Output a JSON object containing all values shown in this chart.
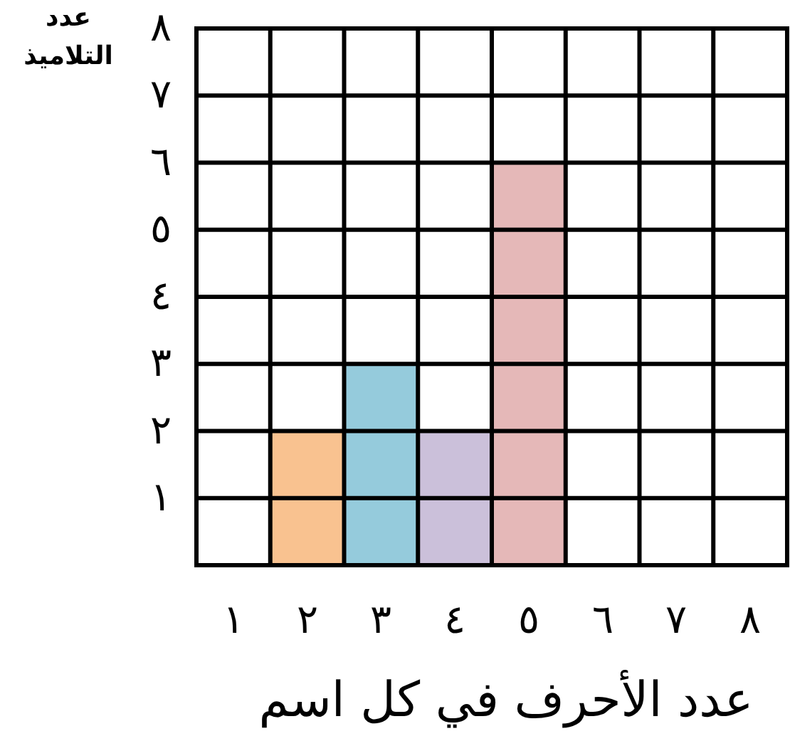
{
  "chart_data": {
    "type": "bar",
    "xlabel": "عدد الأحرف في كل اسم",
    "ylabel": "عدد التلاميذ",
    "categories": [
      "١",
      "٢",
      "٣",
      "٤",
      "٥",
      "٦",
      "٧",
      "٨"
    ],
    "values": [
      0,
      2,
      3,
      2,
      6,
      0,
      0,
      0
    ],
    "colors": [
      "#f9c290",
      "#f9c290",
      "#95cbdc",
      "#cbc0da",
      "#e5b8b8",
      "#e5b8b8",
      "#e5b8b8",
      "#e5b8b8"
    ],
    "ylim": [
      0,
      8
    ],
    "yticks": [
      {
        "value": 1,
        "label": "١"
      },
      {
        "value": 2,
        "label": "٢"
      },
      {
        "value": 3,
        "label": "٣"
      },
      {
        "value": 4,
        "label": "٤"
      },
      {
        "value": 5,
        "label": "٥"
      },
      {
        "value": 6,
        "label": "٦"
      },
      {
        "value": 7,
        "label": "٧"
      },
      {
        "value": 8,
        "label": "٨"
      }
    ],
    "grid": true
  }
}
